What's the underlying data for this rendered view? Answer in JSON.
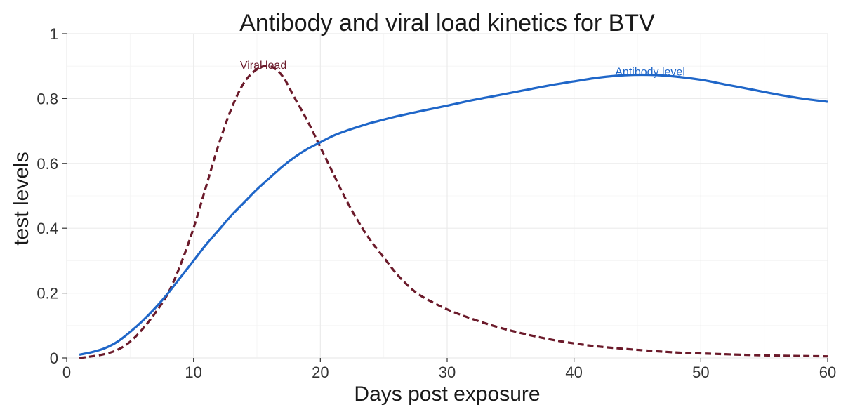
{
  "chart_data": {
    "type": "line",
    "title": "Antibody and viral load kinetics for BTV",
    "xlabel": "Days post exposure",
    "ylabel": "test levels",
    "xlim": [
      0,
      60
    ],
    "ylim": [
      0,
      1
    ],
    "x_ticks": [
      0,
      10,
      20,
      30,
      40,
      50,
      60
    ],
    "y_ticks": [
      "0",
      "0.2",
      "0.4",
      "0.6",
      "0.8",
      "1"
    ],
    "grid": true,
    "series": [
      {
        "name": "Viral load",
        "color": "#6b1a2a",
        "style": "dashed",
        "x": [
          1,
          2,
          3,
          4,
          5,
          6,
          7,
          8,
          9,
          10,
          11,
          12,
          13,
          14,
          15,
          16,
          17,
          18,
          19,
          20,
          21,
          22,
          23,
          24,
          25,
          26,
          27,
          28,
          30,
          32,
          34,
          36,
          38,
          40,
          42,
          45,
          48,
          50,
          55,
          60
        ],
        "y": [
          0.0,
          0.005,
          0.012,
          0.025,
          0.05,
          0.09,
          0.14,
          0.2,
          0.29,
          0.4,
          0.53,
          0.66,
          0.77,
          0.85,
          0.89,
          0.9,
          0.87,
          0.8,
          0.73,
          0.65,
          0.57,
          0.49,
          0.42,
          0.36,
          0.31,
          0.26,
          0.22,
          0.19,
          0.15,
          0.12,
          0.095,
          0.075,
          0.058,
          0.045,
          0.035,
          0.025,
          0.017,
          0.014,
          0.008,
          0.005
        ]
      },
      {
        "name": "Antibody level",
        "color": "#1f66c8",
        "style": "solid",
        "x": [
          1,
          2,
          3,
          4,
          5,
          6,
          7,
          8,
          9,
          10,
          11,
          12,
          13,
          14,
          15,
          16,
          17,
          18,
          19,
          20,
          21,
          22,
          23,
          24,
          25,
          26,
          28,
          30,
          32,
          34,
          36,
          38,
          40,
          42,
          44,
          46,
          48,
          50,
          52,
          54,
          56,
          58,
          60
        ],
        "y": [
          0.01,
          0.018,
          0.03,
          0.05,
          0.08,
          0.115,
          0.155,
          0.2,
          0.25,
          0.3,
          0.35,
          0.395,
          0.44,
          0.48,
          0.52,
          0.555,
          0.59,
          0.62,
          0.645,
          0.665,
          0.685,
          0.7,
          0.713,
          0.725,
          0.735,
          0.745,
          0.762,
          0.778,
          0.795,
          0.81,
          0.825,
          0.84,
          0.853,
          0.865,
          0.872,
          0.873,
          0.868,
          0.858,
          0.843,
          0.828,
          0.813,
          0.8,
          0.79
        ]
      }
    ],
    "annotations": [
      {
        "text": "Viral load",
        "x": 15.5,
        "y": 0.9,
        "color": "#6b1a2a"
      },
      {
        "text": "Antibody level",
        "x": 46,
        "y": 0.88,
        "color": "#1f66c8"
      }
    ]
  }
}
